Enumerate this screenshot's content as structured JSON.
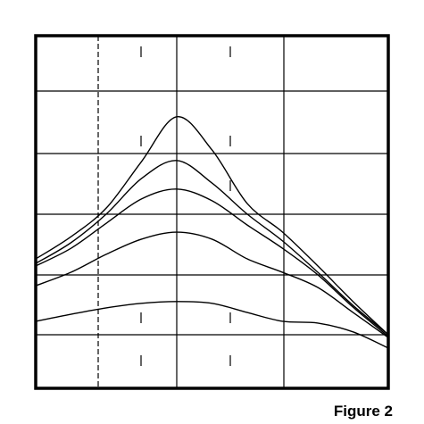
{
  "chart_data": {
    "type": "line",
    "title": "Figure 2",
    "x": [
      0,
      10,
      20,
      30,
      40,
      50,
      60,
      70,
      80,
      90,
      100
    ],
    "xlim": [
      0,
      100
    ],
    "ylim": [
      0,
      100
    ],
    "series": [
      {
        "color": "#000000",
        "values": [
          36.7,
          43,
          51.1,
          64.3,
          77,
          67.6,
          52.4,
          44.3,
          34.7,
          24.6,
          15.2
        ]
      },
      {
        "color": "#000000",
        "values": [
          35.4,
          41.3,
          49.4,
          59.5,
          64.6,
          58.2,
          49.4,
          41.8,
          32.9,
          23.5,
          15.2
        ]
      },
      {
        "color": "#000000",
        "values": [
          34.7,
          39.7,
          46.8,
          53.7,
          56.5,
          53.2,
          46.3,
          39.7,
          32.2,
          23,
          14.7
        ]
      },
      {
        "color": "#000000",
        "values": [
          29.1,
          32.9,
          38,
          42.3,
          44.3,
          42.3,
          36.7,
          32.9,
          28.6,
          21.5,
          14.4
        ]
      },
      {
        "color": "#000000",
        "values": [
          19,
          21,
          22.8,
          24.1,
          24.6,
          24.1,
          21.5,
          19,
          18.5,
          16,
          11.4
        ]
      }
    ]
  }
}
